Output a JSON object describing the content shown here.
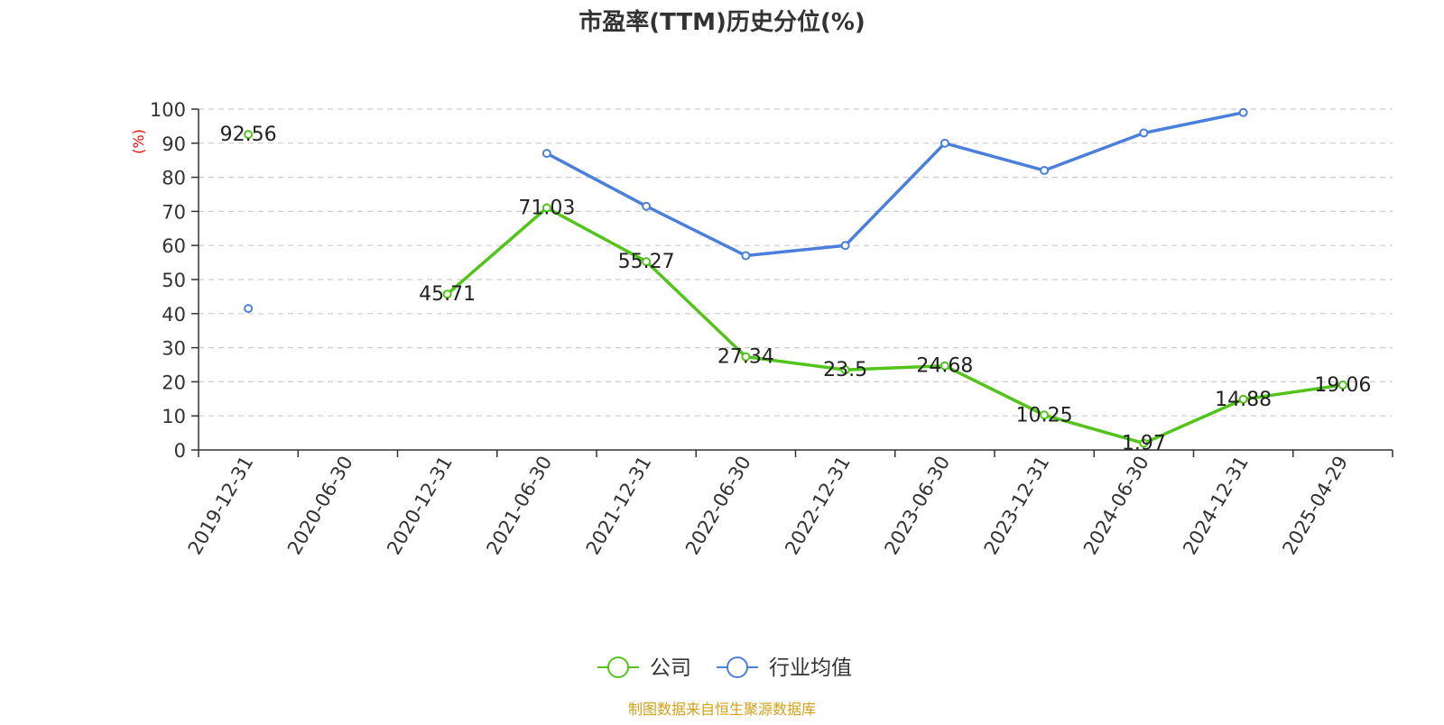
{
  "chart_data": {
    "type": "line",
    "title": "市盈率(TTM)历史分位(%)",
    "ylabel": "(%)",
    "xlabel": "",
    "categories": [
      "2019-12-31",
      "2020-06-30",
      "2020-12-31",
      "2021-06-30",
      "2021-12-31",
      "2022-06-30",
      "2022-12-31",
      "2023-06-30",
      "2023-12-31",
      "2024-06-30",
      "2024-12-31",
      "2025-04-29"
    ],
    "y_ticks": [
      0,
      10,
      20,
      30,
      40,
      50,
      60,
      70,
      80,
      90,
      100
    ],
    "ylim": [
      0,
      100
    ],
    "grid": true,
    "legend_position": "bottom",
    "series": [
      {
        "name": "公司",
        "color": "#52c41a",
        "show_labels": true,
        "values": [
          92.56,
          null,
          45.71,
          71.03,
          55.27,
          27.34,
          23.5,
          24.68,
          10.25,
          1.97,
          14.88,
          19.06
        ]
      },
      {
        "name": "行业均值",
        "color": "#4a7fdc",
        "show_labels": false,
        "values": [
          41.5,
          null,
          null,
          87,
          71.5,
          57,
          60,
          90,
          82,
          93,
          99,
          null
        ]
      }
    ],
    "source_note": "制图数据来自恒生聚源数据库",
    "source_color": "#d4a017",
    "ylabel_color": "#ff0000"
  }
}
